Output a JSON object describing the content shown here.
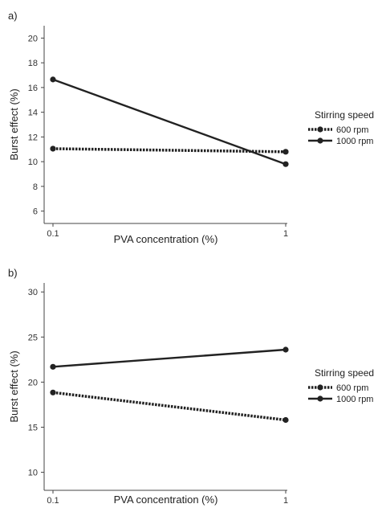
{
  "chart_data": [
    {
      "type": "line",
      "panel_label": "a)",
      "xlabel": "PVA concentration (%)",
      "ylabel": "Burst effect (%)",
      "x": [
        "0.1",
        "1"
      ],
      "ylim": [
        5,
        21
      ],
      "yticks": [
        6,
        8,
        10,
        12,
        14,
        16,
        18,
        20
      ],
      "grid": false,
      "legend": {
        "title": "Stirring speed",
        "placement": "right"
      },
      "series": [
        {
          "name": "600 rpm",
          "values": [
            11.05,
            10.8
          ],
          "style": "dotted"
        },
        {
          "name": "1000 rpm",
          "values": [
            16.65,
            9.8
          ],
          "style": "solid"
        }
      ]
    },
    {
      "type": "line",
      "panel_label": "b)",
      "xlabel": "PVA concentration (%)",
      "ylabel": "Burst effect (%)",
      "x": [
        "0.1",
        "1"
      ],
      "ylim": [
        8,
        31
      ],
      "yticks": [
        10,
        15,
        20,
        25,
        30
      ],
      "grid": false,
      "legend": {
        "title": "Stirring speed",
        "placement": "right"
      },
      "series": [
        {
          "name": "600 rpm",
          "values": [
            18.85,
            15.8
          ],
          "style": "dotted"
        },
        {
          "name": "1000 rpm",
          "values": [
            21.7,
            23.6
          ],
          "style": "solid"
        }
      ]
    }
  ],
  "colors": {
    "line": "#222222",
    "axis": "#444444"
  }
}
